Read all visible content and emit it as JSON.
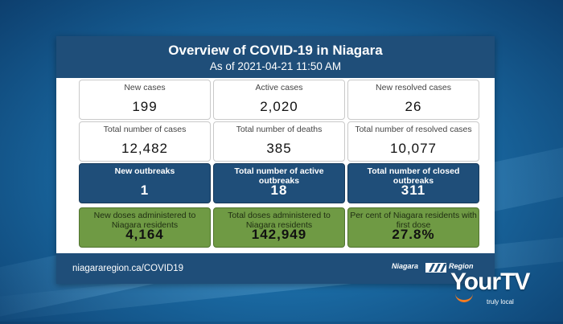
{
  "header": {
    "title": "Overview of COVID-19 in Niagara",
    "as_of": "As of 2021-04-21 11:50 AM"
  },
  "tiles": [
    {
      "label": "New cases",
      "value": "199",
      "style": "white"
    },
    {
      "label": "Active cases",
      "value": "2,020",
      "style": "white"
    },
    {
      "label": "New resolved cases",
      "value": "26",
      "style": "white"
    },
    {
      "label": "Total number of cases",
      "value": "12,482",
      "style": "white"
    },
    {
      "label": "Total number of deaths",
      "value": "385",
      "style": "white"
    },
    {
      "label": "Total number of resolved cases",
      "value": "10,077",
      "style": "white"
    },
    {
      "label": "New outbreaks",
      "value": "1",
      "style": "blue"
    },
    {
      "label": "Total number of active outbreaks",
      "value": "18",
      "style": "blue"
    },
    {
      "label": "Total number of closed outbreaks",
      "value": "311",
      "style": "blue"
    },
    {
      "label": "New doses administered to Niagara residents",
      "value": "4,164",
      "style": "green"
    },
    {
      "label": "Total doses administered to Niagara residents",
      "value": "142,949",
      "style": "green"
    },
    {
      "label": "Per cent of Niagara residents with first dose",
      "value": "27.8%",
      "style": "green"
    }
  ],
  "footer": {
    "url": "niagararegion.ca/COVID19",
    "logo_left": "Niagara",
    "logo_right": "Region"
  },
  "watermark": {
    "brand": "YourTV",
    "tagline": "truly local"
  },
  "colors": {
    "navy": "#1f4e79",
    "green": "#6f9a44",
    "accent_orange": "#f47b20"
  }
}
